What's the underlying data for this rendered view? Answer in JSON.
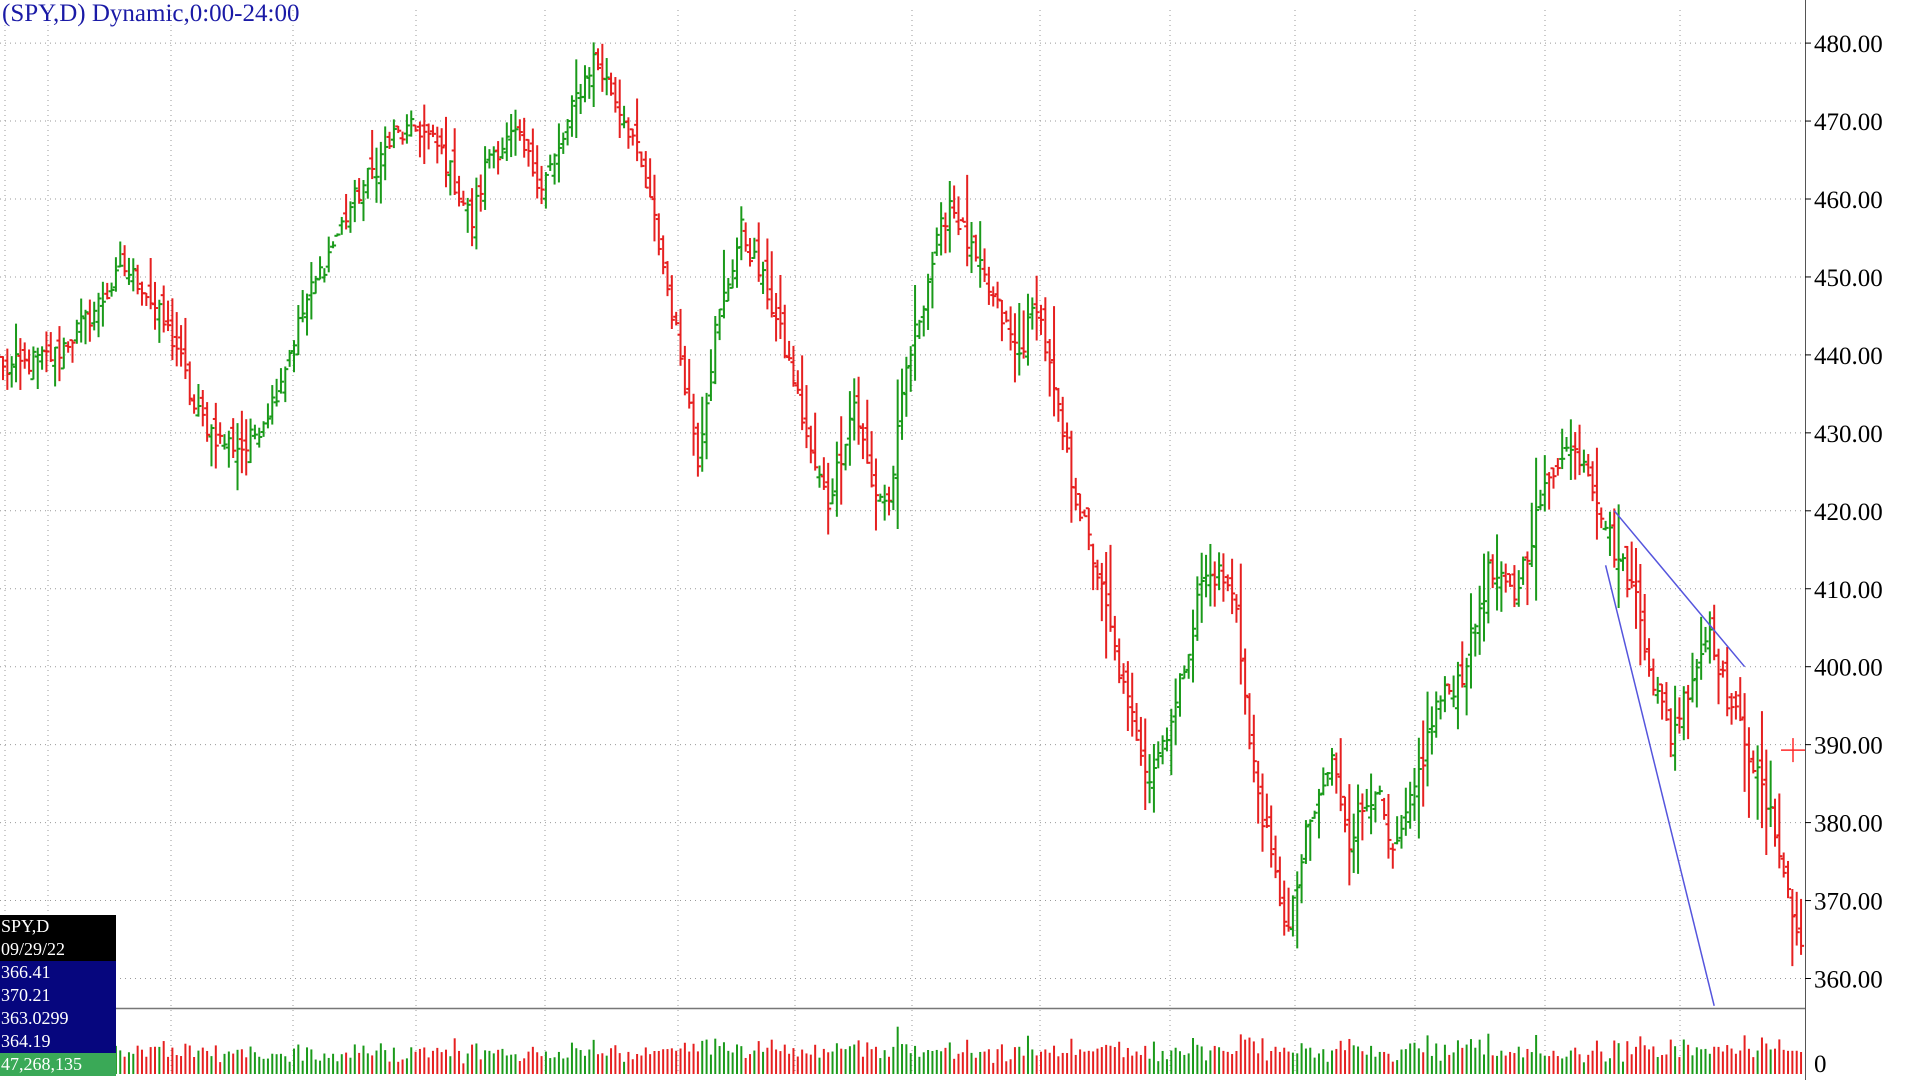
{
  "title": "(SPY,D) Dynamic,0:00-24:00",
  "colors": {
    "up": "#1a9a1a",
    "down": "#e62020",
    "trendline": "#5555dd",
    "grid": "#999999",
    "title": "#1a1aa6",
    "crosshair": "#ff2a2a"
  },
  "data_box": {
    "symbol": "SPY,D",
    "date": "09/29/22",
    "open": "366.41",
    "high": "370.21",
    "low": "363.0299",
    "close": "364.19",
    "volume": "47,268,135"
  },
  "chart_data": {
    "type": "ohlc",
    "symbol": "SPY",
    "interval": "Daily",
    "ylim": [
      355,
      482
    ],
    "yticks": [
      "480.00",
      "470.00",
      "460.00",
      "450.00",
      "440.00",
      "430.00",
      "420.00",
      "410.00",
      "400.00",
      "390.00",
      "380.00",
      "370.00",
      "360.00"
    ],
    "volume_axis_label": "0",
    "grid": true,
    "waypoints": [
      [
        0,
        438
      ],
      [
        12,
        440
      ],
      [
        20,
        445
      ],
      [
        28,
        451
      ],
      [
        32,
        449
      ],
      [
        40,
        441
      ],
      [
        44,
        433
      ],
      [
        50,
        429
      ],
      [
        56,
        428
      ],
      [
        62,
        434
      ],
      [
        70,
        447
      ],
      [
        80,
        459
      ],
      [
        90,
        468
      ],
      [
        96,
        469
      ],
      [
        101,
        466
      ],
      [
        108,
        457
      ],
      [
        112,
        466
      ],
      [
        118,
        468
      ],
      [
        124,
        462
      ],
      [
        128,
        466
      ],
      [
        132,
        473
      ],
      [
        136,
        478
      ],
      [
        140,
        474
      ],
      [
        145,
        468
      ],
      [
        150,
        457
      ],
      [
        156,
        440
      ],
      [
        160,
        427
      ],
      [
        164,
        443
      ],
      [
        170,
        456
      ],
      [
        176,
        448
      ],
      [
        182,
        437
      ],
      [
        186,
        427
      ],
      [
        190,
        421
      ],
      [
        196,
        434
      ],
      [
        200,
        423
      ],
      [
        204,
        421
      ],
      [
        208,
        438
      ],
      [
        214,
        452
      ],
      [
        218,
        460
      ],
      [
        223,
        453
      ],
      [
        228,
        447
      ],
      [
        234,
        440
      ],
      [
        238,
        447
      ],
      [
        242,
        435
      ],
      [
        246,
        424
      ],
      [
        252,
        412
      ],
      [
        258,
        397
      ],
      [
        264,
        386
      ],
      [
        270,
        395
      ],
      [
        276,
        411
      ],
      [
        280,
        412
      ],
      [
        284,
        408
      ],
      [
        287,
        390
      ],
      [
        292,
        375
      ],
      [
        296,
        366
      ],
      [
        300,
        378
      ],
      [
        306,
        388
      ],
      [
        310,
        378
      ],
      [
        316,
        385
      ],
      [
        320,
        375
      ],
      [
        324,
        382
      ],
      [
        330,
        395
      ],
      [
        336,
        399
      ],
      [
        342,
        412
      ],
      [
        348,
        409
      ],
      [
        354,
        421
      ],
      [
        359,
        428
      ],
      [
        364,
        427
      ],
      [
        367,
        422
      ],
      [
        371,
        415
      ],
      [
        376,
        409
      ],
      [
        380,
        398
      ],
      [
        384,
        391
      ],
      [
        389,
        399
      ],
      [
        393,
        405
      ],
      [
        397,
        396
      ],
      [
        401,
        391
      ],
      [
        405,
        384
      ],
      [
        409,
        377
      ],
      [
        412,
        368
      ],
      [
        414,
        364.19
      ]
    ],
    "trendlines": [
      {
        "from": [
          371,
          420
        ],
        "to": [
          401,
          400
        ]
      },
      {
        "from": [
          369,
          413
        ],
        "to": [
          394,
          356.5
        ]
      }
    ],
    "last_bar": {
      "date": "09/29/22",
      "open": 366.41,
      "high": 370.21,
      "low": 363.0299,
      "close": 364.19,
      "volume": 47268135
    }
  }
}
